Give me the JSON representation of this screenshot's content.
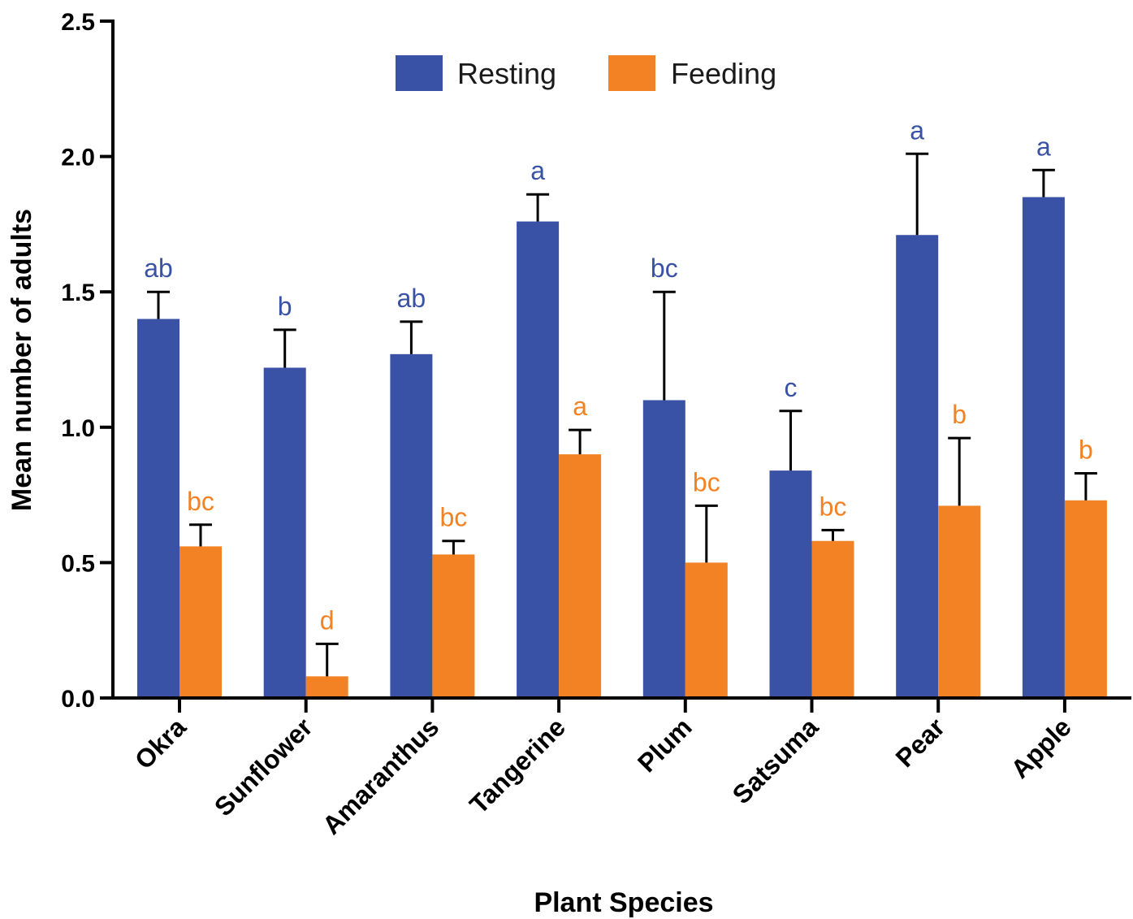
{
  "chart_data": {
    "type": "bar",
    "title": "",
    "xlabel": "Plant Species",
    "ylabel": "Mean number of adults",
    "ylim": [
      0,
      2.5
    ],
    "yticks": [
      "0.0",
      "0.5",
      "1.0",
      "1.5",
      "2.0",
      "2.5"
    ],
    "grid": false,
    "legend_position": "top-center",
    "categories": [
      "Okra",
      "Sunflower",
      "Amaranthus",
      "Tangerine",
      "Plum",
      "Satsuma",
      "Pear",
      "Apple"
    ],
    "series": [
      {
        "name": "Resting",
        "color": "#3a52a6",
        "values": [
          1.4,
          1.22,
          1.27,
          1.76,
          1.1,
          0.84,
          1.71,
          1.85
        ],
        "errors": [
          0.1,
          0.14,
          0.12,
          0.1,
          0.4,
          0.22,
          0.3,
          0.1
        ],
        "letters": [
          "ab",
          "b",
          "ab",
          "a",
          "bc",
          "c",
          "a",
          "a"
        ]
      },
      {
        "name": "Feeding",
        "color": "#f28223",
        "values": [
          0.56,
          0.08,
          0.53,
          0.9,
          0.5,
          0.58,
          0.71,
          0.73
        ],
        "errors": [
          0.08,
          0.12,
          0.05,
          0.09,
          0.21,
          0.04,
          0.25,
          0.1
        ],
        "letters": [
          "bc",
          "d",
          "bc",
          "a",
          "bc",
          "bc",
          "b",
          "b"
        ]
      }
    ]
  }
}
